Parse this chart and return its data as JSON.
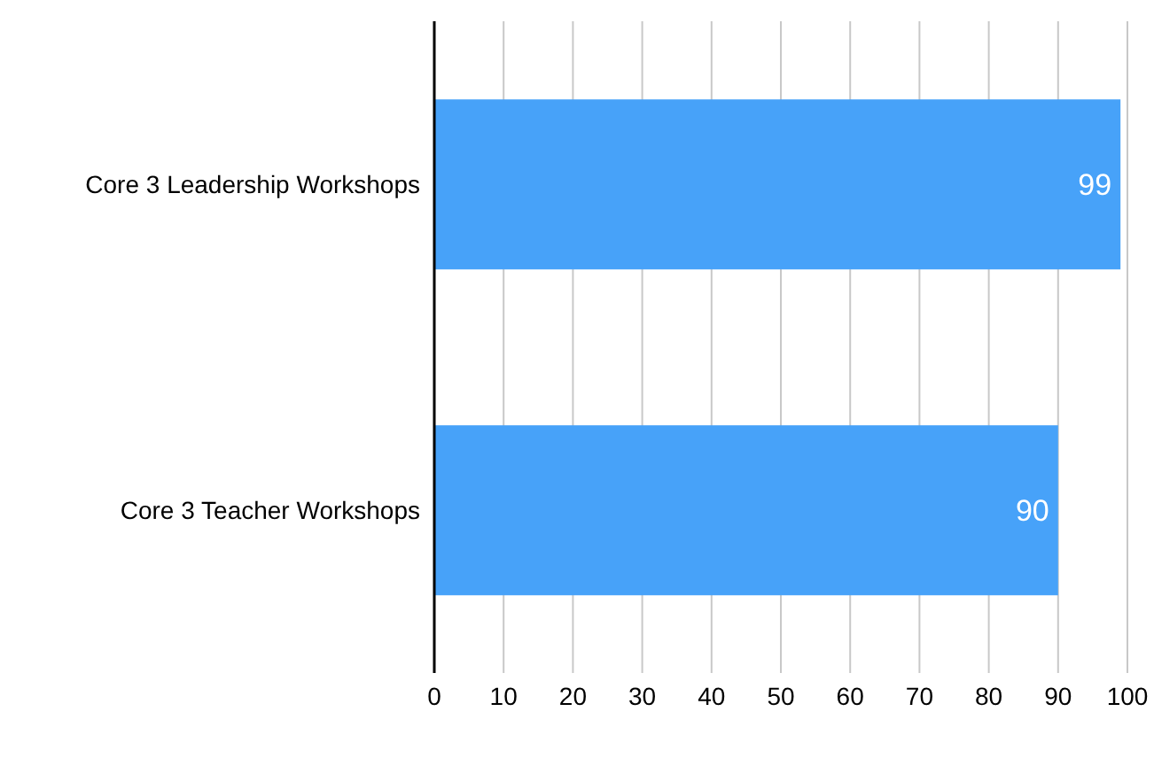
{
  "chart_data": {
    "type": "bar",
    "orientation": "horizontal",
    "categories": [
      "Core 3 Leadership Workshops",
      "Core 3 Teacher Workshops"
    ],
    "values": [
      99,
      90
    ],
    "color": "#47a2f9",
    "xlim": [
      0,
      100
    ],
    "xticks": [
      0,
      10,
      20,
      30,
      40,
      50,
      60,
      70,
      80,
      90,
      100
    ],
    "grid": "x",
    "data_labels": true,
    "legend": false
  }
}
